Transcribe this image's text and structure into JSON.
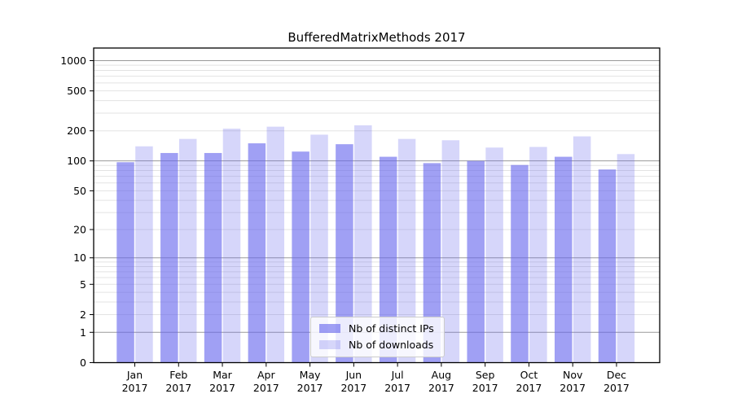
{
  "page": {
    "background": "#ffffff"
  },
  "chart_data": {
    "type": "bar",
    "title": "BufferedMatrixMethods 2017",
    "categories": [
      "Jan",
      "Feb",
      "Mar",
      "Apr",
      "May",
      "Jun",
      "Jul",
      "Aug",
      "Sep",
      "Oct",
      "Nov",
      "Dec"
    ],
    "xtick_second_line": "2017",
    "series": [
      {
        "name": "Nb of distinct IPs",
        "fill": "rgba(102,102,238,0.62)",
        "hex_on_white": "#a5a5f3",
        "values": [
          97,
          120,
          120,
          150,
          124,
          147,
          110,
          95,
          100,
          91,
          110,
          82
        ]
      },
      {
        "name": "Nb of downloads",
        "fill": "rgba(102,102,238,0.27)",
        "hex_on_white": "#d8d8f8",
        "values": [
          140,
          166,
          210,
          220,
          183,
          227,
          166,
          161,
          136,
          138,
          176,
          117
        ]
      }
    ],
    "yaxis": {
      "scale": "log10(value+1)",
      "tick_labels": [
        "1000",
        "500",
        "200",
        "100",
        "50",
        "20",
        "10",
        "5",
        "2",
        "1",
        "0"
      ],
      "tick_values": [
        1000,
        500,
        200,
        100,
        50,
        20,
        10,
        5,
        2,
        1,
        0
      ],
      "major_gridlines": [
        1,
        10,
        100,
        1000
      ],
      "minor_gridlines": [
        2,
        3,
        4,
        5,
        6,
        7,
        8,
        9,
        20,
        30,
        40,
        50,
        60,
        70,
        80,
        90,
        200,
        300,
        400,
        500,
        600,
        700,
        800,
        900
      ],
      "ylim": [
        0,
        1200
      ]
    },
    "legend": {
      "position": "inside-bottom-center",
      "entries": [
        "Nb of distinct IPs",
        "Nb of downloads"
      ]
    },
    "grid": true,
    "colors": {
      "axis": "#000000",
      "text": "#000000",
      "major_grid": "#9a9a9a",
      "minor_grid": "#e3e3e3",
      "legend_border": "#cccccc"
    }
  }
}
